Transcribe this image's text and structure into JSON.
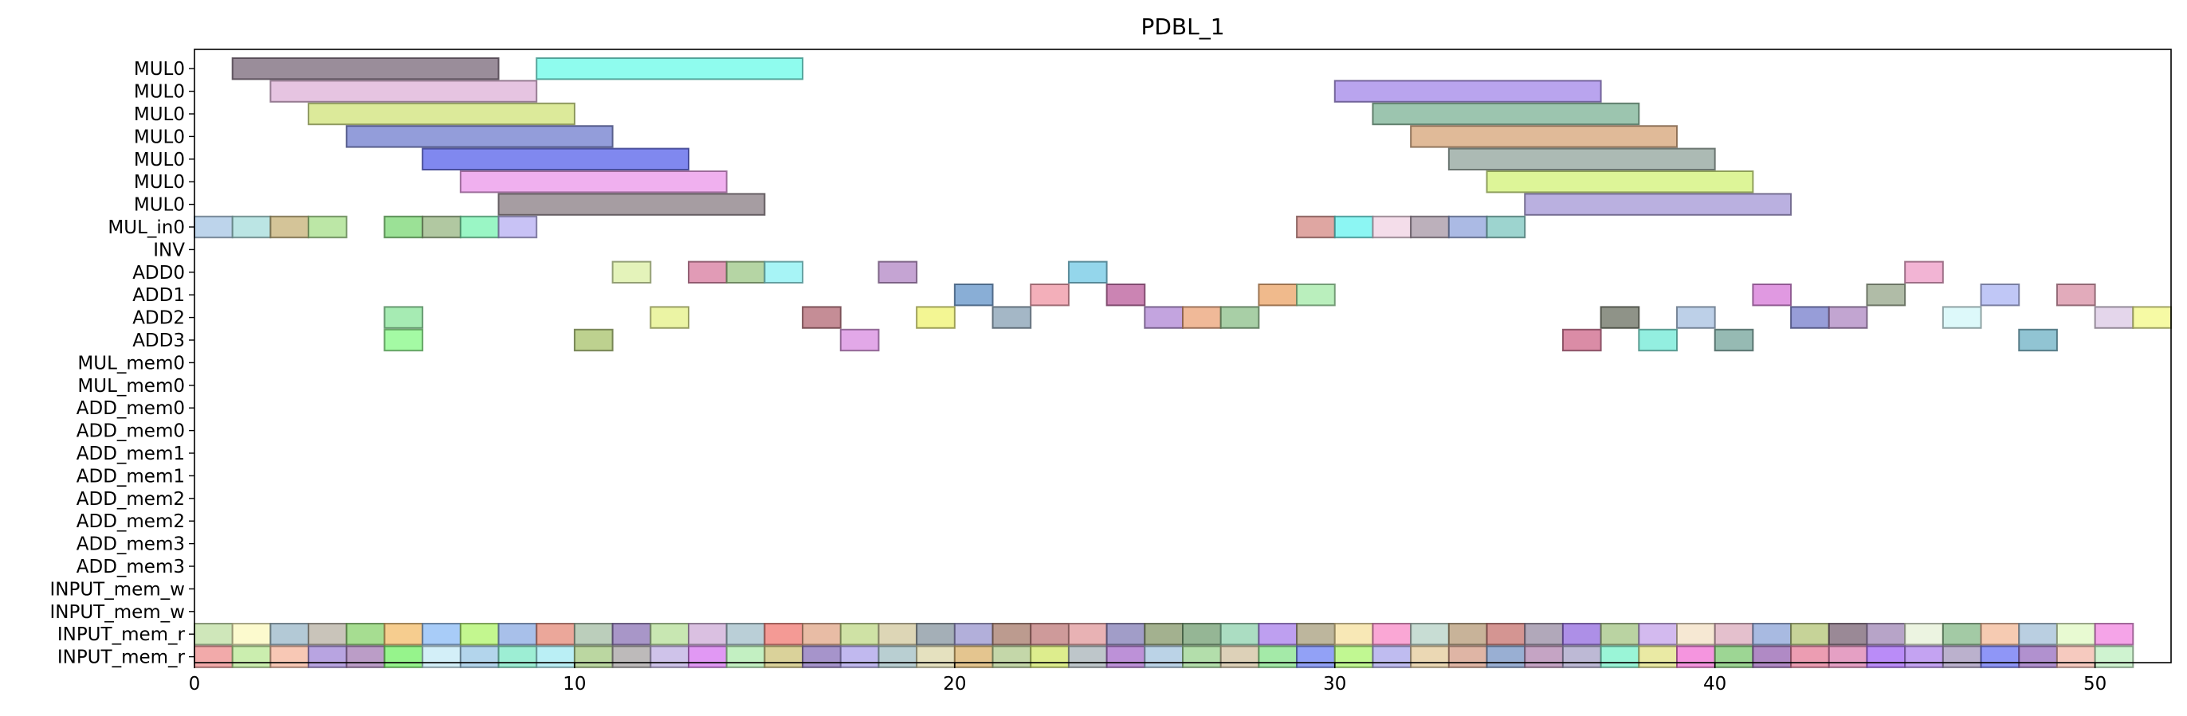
{
  "chart_data": {
    "type": "gantt",
    "title": "PDBL_1",
    "xlim": [
      0,
      52
    ],
    "xticks": [
      "0",
      "10",
      "20",
      "30",
      "40",
      "50"
    ],
    "xtick_values": [
      0,
      10,
      20,
      30,
      40,
      50
    ],
    "grid": false,
    "rows": [
      "MUL0",
      "MUL0",
      "MUL0",
      "MUL0",
      "MUL0",
      "MUL0",
      "MUL0",
      "MUL_in0",
      "INV",
      "ADD0",
      "ADD1",
      "ADD2",
      "ADD3",
      "MUL_mem0",
      "MUL_mem0",
      "ADD_mem0",
      "ADD_mem0",
      "ADD_mem1",
      "ADD_mem1",
      "ADD_mem2",
      "ADD_mem2",
      "ADD_mem3",
      "ADD_mem3",
      "INPUT_mem_w",
      "INPUT_mem_w",
      "INPUT_mem_r",
      "INPUT_mem_r"
    ],
    "tasks": [
      {
        "row": 0,
        "start": 1,
        "end": 8,
        "color": "#7e6d7e"
      },
      {
        "row": 0,
        "start": 9,
        "end": 16,
        "color": "#6ffbe9"
      },
      {
        "row": 1,
        "start": 2,
        "end": 9,
        "color": "#dfb3d9"
      },
      {
        "row": 1,
        "start": 30,
        "end": 37,
        "color": "#a58be9"
      },
      {
        "row": 2,
        "start": 3,
        "end": 10,
        "color": "#d2e47e"
      },
      {
        "row": 2,
        "start": 31,
        "end": 38,
        "color": "#80b598"
      },
      {
        "row": 3,
        "start": 4,
        "end": 11,
        "color": "#7482cf"
      },
      {
        "row": 3,
        "start": 32,
        "end": 39,
        "color": "#d7a77b"
      },
      {
        "row": 4,
        "start": 6,
        "end": 13,
        "color": "#5c66ea"
      },
      {
        "row": 4,
        "start": 33,
        "end": 40,
        "color": "#95a79f"
      },
      {
        "row": 5,
        "start": 7,
        "end": 14,
        "color": "#ec9aea"
      },
      {
        "row": 5,
        "start": 34,
        "end": 41,
        "color": "#d4f27b"
      },
      {
        "row": 6,
        "start": 8,
        "end": 15,
        "color": "#8d8288"
      },
      {
        "row": 6,
        "start": 35,
        "end": 42,
        "color": "#a79ad7"
      },
      {
        "row": 7,
        "start": 0,
        "end": 1,
        "color": "#abc8e6"
      },
      {
        "row": 7,
        "start": 1,
        "end": 2,
        "color": "#a8dedc"
      },
      {
        "row": 7,
        "start": 2,
        "end": 3,
        "color": "#c8b47b"
      },
      {
        "row": 7,
        "start": 3,
        "end": 4,
        "color": "#a9e08d"
      },
      {
        "row": 7,
        "start": 5,
        "end": 6,
        "color": "#7fd978"
      },
      {
        "row": 7,
        "start": 6,
        "end": 7,
        "color": "#9bb987"
      },
      {
        "row": 7,
        "start": 7,
        "end": 8,
        "color": "#7ef3b5"
      },
      {
        "row": 7,
        "start": 8,
        "end": 9,
        "color": "#b8b1f2"
      },
      {
        "row": 7,
        "start": 29,
        "end": 30,
        "color": "#d68d88"
      },
      {
        "row": 7,
        "start": 30,
        "end": 31,
        "color": "#6bf3ef"
      },
      {
        "row": 7,
        "start": 31,
        "end": 32,
        "color": "#f1d4e4"
      },
      {
        "row": 7,
        "start": 32,
        "end": 33,
        "color": "#a99aa8"
      },
      {
        "row": 7,
        "start": 33,
        "end": 34,
        "color": "#93a7dc"
      },
      {
        "row": 7,
        "start": 34,
        "end": 35,
        "color": "#82c8c2"
      },
      {
        "row": 9,
        "start": 11,
        "end": 12,
        "color": "#dcefa6"
      },
      {
        "row": 9,
        "start": 13,
        "end": 14,
        "color": "#d97fa2"
      },
      {
        "row": 9,
        "start": 14,
        "end": 15,
        "color": "#a0c98a"
      },
      {
        "row": 9,
        "start": 15,
        "end": 16,
        "color": "#8ef1f4"
      },
      {
        "row": 9,
        "start": 18,
        "end": 19,
        "color": "#b58ac6"
      },
      {
        "row": 9,
        "start": 23,
        "end": 24,
        "color": "#76cbe6"
      },
      {
        "row": 9,
        "start": 45,
        "end": 46,
        "color": "#ee9fc8"
      },
      {
        "row": 10,
        "start": 20,
        "end": 21,
        "color": "#6897cb"
      },
      {
        "row": 10,
        "start": 22,
        "end": 23,
        "color": "#ef98a6"
      },
      {
        "row": 10,
        "start": 24,
        "end": 25,
        "color": "#bc629e"
      },
      {
        "row": 10,
        "start": 28,
        "end": 29,
        "color": "#eca66b"
      },
      {
        "row": 10,
        "start": 29,
        "end": 30,
        "color": "#a6ebab"
      },
      {
        "row": 10,
        "start": 41,
        "end": 42,
        "color": "#d77cd9"
      },
      {
        "row": 10,
        "start": 44,
        "end": 45,
        "color": "#9aa98e"
      },
      {
        "row": 10,
        "start": 47,
        "end": 48,
        "color": "#aeb7f3"
      },
      {
        "row": 10,
        "start": 49,
        "end": 50,
        "color": "#da93a8"
      },
      {
        "row": 11,
        "start": 5,
        "end": 6,
        "color": "#8de59e"
      },
      {
        "row": 11,
        "start": 12,
        "end": 13,
        "color": "#e6f18a"
      },
      {
        "row": 11,
        "start": 16,
        "end": 17,
        "color": "#b56d78"
      },
      {
        "row": 11,
        "start": 19,
        "end": 20,
        "color": "#eff474"
      },
      {
        "row": 11,
        "start": 21,
        "end": 22,
        "color": "#8ba3b6"
      },
      {
        "row": 11,
        "start": 25,
        "end": 26,
        "color": "#b28ad6"
      },
      {
        "row": 11,
        "start": 26,
        "end": 27,
        "color": "#eca57b"
      },
      {
        "row": 11,
        "start": 27,
        "end": 28,
        "color": "#8fc18d"
      },
      {
        "row": 11,
        "start": 37,
        "end": 38,
        "color": "#6f7466"
      },
      {
        "row": 11,
        "start": 39,
        "end": 40,
        "color": "#aac3e2"
      },
      {
        "row": 11,
        "start": 42,
        "end": 43,
        "color": "#7a82cd"
      },
      {
        "row": 11,
        "start": 43,
        "end": 44,
        "color": "#b18cc4"
      },
      {
        "row": 11,
        "start": 46,
        "end": 47,
        "color": "#d4f7f9"
      },
      {
        "row": 11,
        "start": 50,
        "end": 51,
        "color": "#ddcbe6"
      },
      {
        "row": 11,
        "start": 51,
        "end": 52,
        "color": "#f3f88a"
      },
      {
        "row": 12,
        "start": 5,
        "end": 6,
        "color": "#8bf98a"
      },
      {
        "row": 12,
        "start": 10,
        "end": 11,
        "color": "#aac46f"
      },
      {
        "row": 12,
        "start": 17,
        "end": 18,
        "color": "#da8fe1"
      },
      {
        "row": 12,
        "start": 36,
        "end": 37,
        "color": "#d06b8d"
      },
      {
        "row": 12,
        "start": 38,
        "end": 39,
        "color": "#74ead7"
      },
      {
        "row": 12,
        "start": 40,
        "end": 41,
        "color": "#78a79e"
      },
      {
        "row": 12,
        "start": 48,
        "end": 49,
        "color": "#72b3c6"
      }
    ],
    "input_mem_r_colors": [
      [
        "#c1e0a7",
        "#fbf8c0",
        "#9dbacb",
        "#bab3a7",
        "#8dd472",
        "#f3bf6f",
        "#8fbef6",
        "#b2f56f",
        "#8faee4",
        "#e58e7d",
        "#a8c0a8",
        "#8f78b9",
        "#b8e09c",
        "#cfaed9",
        "#a6c2cc",
        "#f17d77",
        "#e1a98c",
        "#c2da8c",
        "#d3caa2",
        "#8b99a3",
        "#9c99cf",
        "#a97f6f",
        "#c07d7d",
        "#e19c9f",
        "#8781b8",
        "#899b6f",
        "#77a277",
        "#94d4b1",
        "#ac84ec",
        "#aaa181",
        "#f6e1a1",
        "#f98ec9",
        "#b9d4c8",
        "#b99e7c",
        "#c87773",
        "#9b8fa6",
        "#966fe0",
        "#a6c788",
        "#c7a6ea",
        "#f3e1c6",
        "#dcaebf",
        "#90a7d8",
        "#b6c77b",
        "#7d6879",
        "#a38bb9",
        "#e7f1d8",
        "#89bb8c",
        "#f4bc9c",
        "#a6c1d8",
        "#e2f8c5",
        "#f28ae2"
      ],
      [
        "#ee9292",
        "#bde998",
        "#f6b8a0",
        "#a48ad9",
        "#a882b7",
        "#79f16b",
        "#c6eaf6",
        "#9ec9e7",
        "#82e9c8",
        "#a6eaf2",
        "#a8cc86",
        "#aaa6a7",
        "#c2b2e4",
        "#d97bf1",
        "#b2ecb1",
        "#d0c57d",
        "#8d76bc",
        "#afa5ea",
        "#a5c1c5",
        "#ded9ad",
        "#dcb56f",
        "#b3cc91",
        "#d4e86d",
        "#acb6bb",
        "#ab72cd",
        "#a8c6e0",
        "#9ed593",
        "#d4c4a4",
        "#8be490",
        "#7386f3",
        "#aff673",
        "#ada9ec",
        "#e6cd9f",
        "#d6a08c",
        "#7c99c6",
        "#b58bb3",
        "#aaa5c9",
        "#7df2cc",
        "#e4e48a",
        "#f277d6",
        "#82ca76",
        "#9a69b5",
        "#e7819c",
        "#de85b4",
        "#a76bf6",
        "#b489ee",
        "#a89bbf",
        "#7079f5",
        "#9b72c2",
        "#f4bbad",
        "#c1efc3"
      ]
    ]
  }
}
